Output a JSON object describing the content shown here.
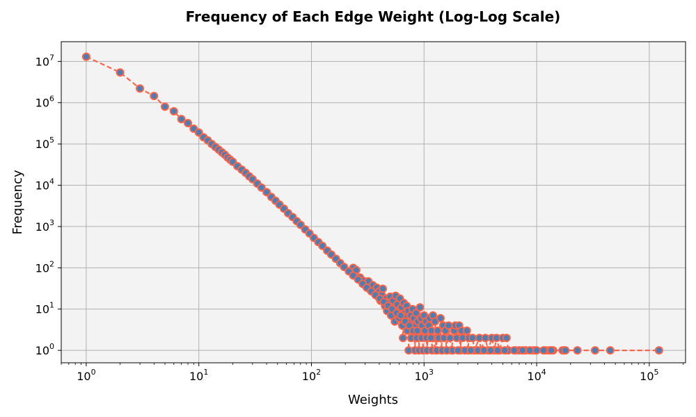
{
  "chart_data": {
    "type": "scatter",
    "title": "Frequency of Each Edge Weight (Log-Log Scale)",
    "xlabel": "Weights",
    "ylabel": "Frequency",
    "xscale": "log",
    "yscale": "log",
    "xlim": [
      0.6,
      210000
    ],
    "ylim": [
      0.5,
      30000000
    ],
    "grid": true,
    "background_color": "#f3f3f3",
    "marker_face_color": "#4a7fb5",
    "marker_edge_color": "#ff6347",
    "line_color": "#ff6347",
    "line_style": "dashed",
    "x_ticks": [
      {
        "base": "10",
        "exp": "0"
      },
      {
        "base": "10",
        "exp": "1"
      },
      {
        "base": "10",
        "exp": "2"
      },
      {
        "base": "10",
        "exp": "3"
      },
      {
        "base": "10",
        "exp": "4"
      },
      {
        "base": "10",
        "exp": "5"
      }
    ],
    "y_ticks": [
      {
        "base": "10",
        "exp": "0"
      },
      {
        "base": "10",
        "exp": "1"
      },
      {
        "base": "10",
        "exp": "2"
      },
      {
        "base": "10",
        "exp": "3"
      },
      {
        "base": "10",
        "exp": "4"
      },
      {
        "base": "10",
        "exp": "5"
      },
      {
        "base": "10",
        "exp": "6"
      },
      {
        "base": "10",
        "exp": "7"
      }
    ],
    "series": [
      {
        "points": [
          [
            1,
            13000000
          ],
          [
            2,
            5400000
          ],
          [
            3,
            2200000
          ],
          [
            4,
            1450000
          ],
          [
            5,
            800000
          ],
          [
            6,
            620000
          ],
          [
            7,
            400000
          ],
          [
            8,
            320000
          ],
          [
            9,
            235000
          ],
          [
            10,
            190000
          ],
          [
            11,
            145000
          ],
          [
            12,
            122000
          ],
          [
            13,
            100000
          ],
          [
            14,
            85000
          ],
          [
            15,
            73000
          ],
          [
            16,
            63000
          ],
          [
            17,
            55000
          ],
          [
            18,
            47000
          ],
          [
            19,
            41500
          ],
          [
            20,
            37000
          ],
          [
            22,
            29000
          ],
          [
            24,
            24000
          ],
          [
            26,
            20000
          ],
          [
            28,
            16500
          ],
          [
            30,
            14000
          ],
          [
            33,
            11000
          ],
          [
            36,
            8800
          ],
          [
            40,
            6800
          ],
          [
            44,
            5200
          ],
          [
            48,
            4200
          ],
          [
            52,
            3400
          ],
          [
            57,
            2700
          ],
          [
            62,
            2100
          ],
          [
            68,
            1700
          ],
          [
            74,
            1350
          ],
          [
            80,
            1100
          ],
          [
            88,
            850
          ],
          [
            96,
            680
          ],
          [
            105,
            530
          ],
          [
            115,
            420
          ],
          [
            125,
            340
          ],
          [
            138,
            260
          ],
          [
            150,
            210
          ],
          [
            165,
            165
          ],
          [
            180,
            130
          ],
          [
            195,
            105
          ],
          [
            215,
            82
          ],
          [
            235,
            65
          ],
          [
            260,
            52
          ],
          [
            285,
            41
          ],
          [
            310,
            33
          ],
          [
            340,
            27
          ],
          [
            370,
            22
          ],
          [
            405,
            18
          ],
          [
            440,
            15
          ],
          [
            480,
            12
          ],
          [
            520,
            10
          ],
          [
            570,
            8
          ],
          [
            620,
            7
          ],
          [
            680,
            5
          ],
          [
            740,
            4
          ],
          [
            800,
            3
          ],
          [
            870,
            3
          ],
          [
            950,
            2
          ],
          [
            1050,
            2
          ],
          [
            1150,
            2
          ],
          [
            1300,
            1
          ],
          [
            1450,
            1
          ],
          [
            1600,
            1
          ],
          [
            1800,
            1
          ],
          [
            2000,
            1
          ],
          [
            2300,
            1
          ],
          [
            2600,
            1
          ],
          [
            3000,
            1
          ],
          [
            3400,
            1
          ],
          [
            3900,
            1
          ],
          [
            4500,
            1
          ],
          [
            5200,
            1
          ],
          [
            6300,
            1
          ],
          [
            7500,
            1
          ],
          [
            8700,
            1
          ],
          [
            10000,
            1
          ],
          [
            11500,
            1
          ],
          [
            13500,
            1
          ],
          [
            17000,
            1
          ],
          [
            18000,
            1
          ],
          [
            23000,
            1
          ],
          [
            33000,
            1
          ],
          [
            45000,
            1
          ],
          [
            122000,
            1
          ]
        ],
        "scatter_points": [
          [
            235,
            100
          ],
          [
            250,
            88
          ],
          [
            270,
            58
          ],
          [
            290,
            48
          ],
          [
            300,
            38
          ],
          [
            320,
            47
          ],
          [
            330,
            30
          ],
          [
            350,
            38
          ],
          [
            360,
            25
          ],
          [
            380,
            33
          ],
          [
            390,
            20
          ],
          [
            400,
            27
          ],
          [
            410,
            16
          ],
          [
            420,
            22
          ],
          [
            430,
            31
          ],
          [
            450,
            12
          ],
          [
            460,
            18
          ],
          [
            470,
            9
          ],
          [
            490,
            14
          ],
          [
            500,
            20
          ],
          [
            510,
            7
          ],
          [
            530,
            16
          ],
          [
            540,
            11
          ],
          [
            550,
            5
          ],
          [
            560,
            21
          ],
          [
            580,
            13
          ],
          [
            590,
            9
          ],
          [
            600,
            6
          ],
          [
            610,
            18
          ],
          [
            630,
            11
          ],
          [
            640,
            4
          ],
          [
            650,
            2
          ],
          [
            660,
            14
          ],
          [
            670,
            8
          ],
          [
            690,
            6
          ],
          [
            700,
            12
          ],
          [
            710,
            3
          ],
          [
            720,
            9
          ],
          [
            730,
            1
          ],
          [
            760,
            7
          ],
          [
            770,
            2
          ],
          [
            780,
            5
          ],
          [
            790,
            10
          ],
          [
            810,
            6
          ],
          [
            830,
            1
          ],
          [
            840,
            4
          ],
          [
            850,
            8
          ],
          [
            860,
            2
          ],
          [
            880,
            5
          ],
          [
            900,
            1
          ],
          [
            910,
            3
          ],
          [
            920,
            11
          ],
          [
            940,
            6
          ],
          [
            960,
            4
          ],
          [
            980,
            1
          ],
          [
            1000,
            7
          ],
          [
            1020,
            3
          ],
          [
            1040,
            5
          ],
          [
            1060,
            1
          ],
          [
            1080,
            2
          ],
          [
            1100,
            4
          ],
          [
            1120,
            6
          ],
          [
            1160,
            3
          ],
          [
            1180,
            1
          ],
          [
            1200,
            7
          ],
          [
            1220,
            2
          ],
          [
            1250,
            5
          ],
          [
            1280,
            1
          ],
          [
            1320,
            3
          ],
          [
            1350,
            2
          ],
          [
            1400,
            6
          ],
          [
            1420,
            1
          ],
          [
            1480,
            4
          ],
          [
            1500,
            2
          ],
          [
            1550,
            3
          ],
          [
            1580,
            1
          ],
          [
            1650,
            4
          ],
          [
            1700,
            2
          ],
          [
            1750,
            1
          ],
          [
            1850,
            3
          ],
          [
            1900,
            4
          ],
          [
            1950,
            2
          ],
          [
            2050,
            4
          ],
          [
            2100,
            1
          ],
          [
            2150,
            3
          ],
          [
            2200,
            2
          ],
          [
            2400,
            3
          ],
          [
            2450,
            1
          ],
          [
            2500,
            2
          ],
          [
            2700,
            2
          ],
          [
            2800,
            1
          ],
          [
            3100,
            2
          ],
          [
            3200,
            1
          ],
          [
            3500,
            2
          ],
          [
            3700,
            1
          ],
          [
            4000,
            2
          ],
          [
            4200,
            1
          ],
          [
            4400,
            2
          ],
          [
            4700,
            1
          ],
          [
            5000,
            2
          ],
          [
            5400,
            2
          ],
          [
            5600,
            1
          ],
          [
            6500,
            1
          ],
          [
            7000,
            1
          ],
          [
            8000,
            1
          ],
          [
            9300,
            1
          ],
          [
            9600,
            1
          ],
          [
            12000,
            1
          ],
          [
            13000,
            1
          ],
          [
            14000,
            1
          ],
          [
            17500,
            1
          ]
        ]
      }
    ]
  }
}
